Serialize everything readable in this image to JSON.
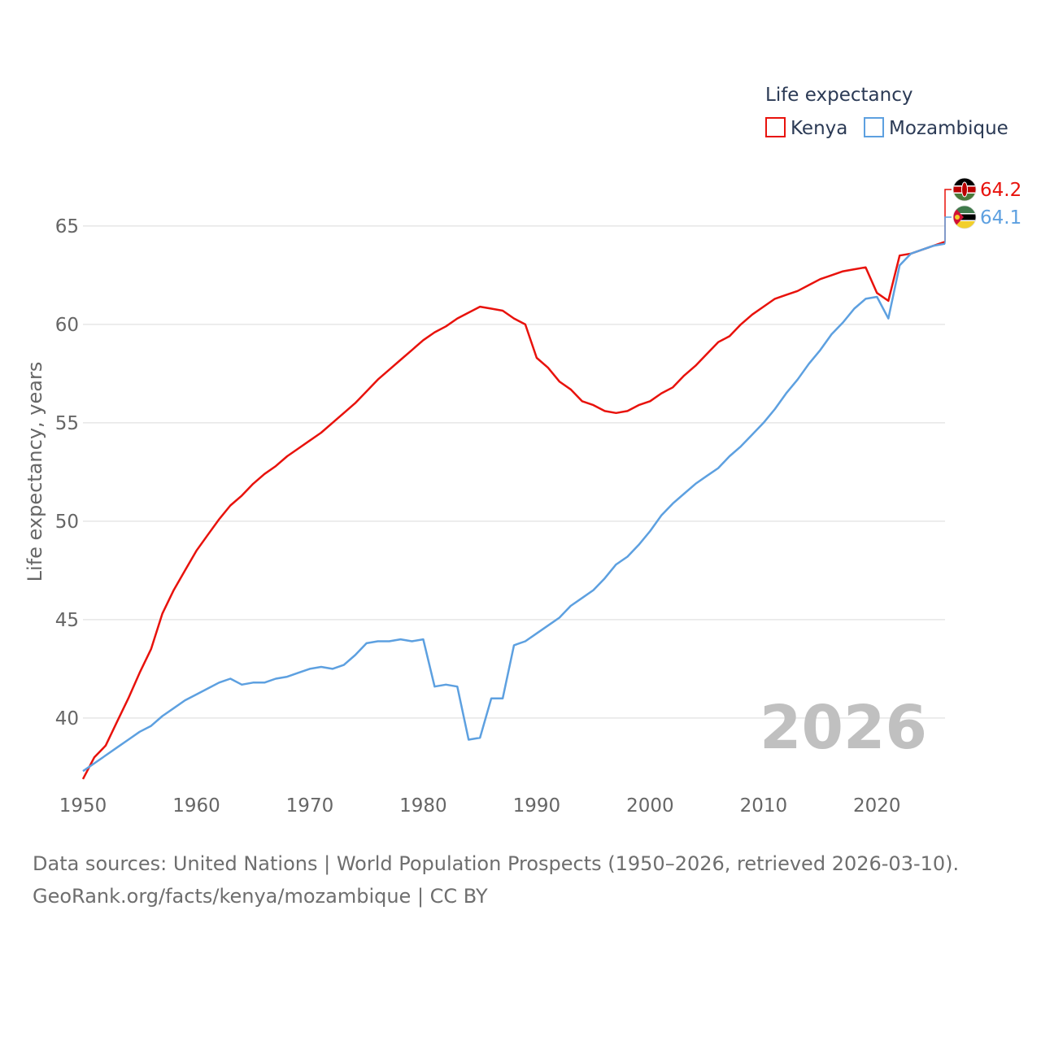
{
  "chart_data": {
    "type": "line",
    "legend_title": "Life expectancy",
    "ylabel": "Life expectancy, years",
    "xlabel": "",
    "xlim": [
      1950,
      2026
    ],
    "ylim": [
      37,
      67
    ],
    "x_ticks": [
      "1950",
      "1960",
      "1970",
      "1980",
      "1990",
      "2000",
      "2010",
      "2020"
    ],
    "y_ticks": [
      "40",
      "45",
      "50",
      "55",
      "60",
      "65"
    ],
    "year_label": "2026",
    "legend_position": "top-right",
    "grid": true,
    "x": [
      1950,
      1951,
      1952,
      1953,
      1954,
      1955,
      1956,
      1957,
      1958,
      1959,
      1960,
      1961,
      1962,
      1963,
      1964,
      1965,
      1966,
      1967,
      1968,
      1969,
      1970,
      1971,
      1972,
      1973,
      1974,
      1975,
      1976,
      1977,
      1978,
      1979,
      1980,
      1981,
      1982,
      1983,
      1984,
      1985,
      1986,
      1987,
      1988,
      1989,
      1990,
      1991,
      1992,
      1993,
      1994,
      1995,
      1996,
      1997,
      1998,
      1999,
      2000,
      2001,
      2002,
      2003,
      2004,
      2005,
      2006,
      2007,
      2008,
      2009,
      2010,
      2011,
      2012,
      2013,
      2014,
      2015,
      2016,
      2017,
      2018,
      2019,
      2020,
      2021,
      2022,
      2023,
      2024,
      2025,
      2026
    ],
    "series": [
      {
        "name": "Kenya",
        "color": "#e8120c",
        "end_label": "64.2",
        "flag": "kenya-flag",
        "values": [
          36.9,
          38.0,
          38.6,
          39.8,
          41.0,
          42.3,
          43.5,
          45.3,
          46.5,
          47.5,
          48.5,
          49.3,
          50.1,
          50.8,
          51.3,
          51.9,
          52.4,
          52.8,
          53.3,
          53.7,
          54.1,
          54.5,
          55.0,
          55.5,
          56.0,
          56.6,
          57.2,
          57.7,
          58.2,
          58.7,
          59.2,
          59.6,
          59.9,
          60.3,
          60.6,
          60.9,
          60.8,
          60.7,
          60.3,
          60.0,
          58.3,
          57.8,
          57.1,
          56.7,
          56.1,
          55.9,
          55.6,
          55.5,
          55.6,
          55.9,
          56.1,
          56.5,
          56.8,
          57.4,
          57.9,
          58.5,
          59.1,
          59.4,
          60.0,
          60.5,
          60.9,
          61.3,
          61.5,
          61.7,
          62.0,
          62.3,
          62.5,
          62.7,
          62.8,
          62.9,
          61.6,
          61.2,
          63.5,
          63.6,
          63.8,
          64.0,
          64.2
        ]
      },
      {
        "name": "Mozambique",
        "color": "#5da0e0",
        "end_label": "64.1",
        "flag": "mozambique-flag",
        "values": [
          37.3,
          37.7,
          38.1,
          38.5,
          38.9,
          39.3,
          39.6,
          40.1,
          40.5,
          40.9,
          41.2,
          41.5,
          41.8,
          42.0,
          41.7,
          41.8,
          41.8,
          42.0,
          42.1,
          42.3,
          42.5,
          42.6,
          42.5,
          42.7,
          43.2,
          43.8,
          43.9,
          43.9,
          44.0,
          43.9,
          44.0,
          41.6,
          41.7,
          41.6,
          38.9,
          39.0,
          41.0,
          41.0,
          43.7,
          43.9,
          44.3,
          44.7,
          45.1,
          45.7,
          46.1,
          46.5,
          47.1,
          47.8,
          48.2,
          48.8,
          49.5,
          50.3,
          50.9,
          51.4,
          51.9,
          52.3,
          52.7,
          53.3,
          53.8,
          54.4,
          55.0,
          55.7,
          56.5,
          57.2,
          58.0,
          58.7,
          59.5,
          60.1,
          60.8,
          61.3,
          61.4,
          60.3,
          63.0,
          63.6,
          63.8,
          64.0,
          64.1
        ]
      }
    ]
  },
  "footer": {
    "sources": "Data sources: United Nations | World Population Prospects (1950–2026, retrieved 2026-03-10).",
    "credit": "GeoRank.org/facts/kenya/mozambique | CC BY"
  }
}
